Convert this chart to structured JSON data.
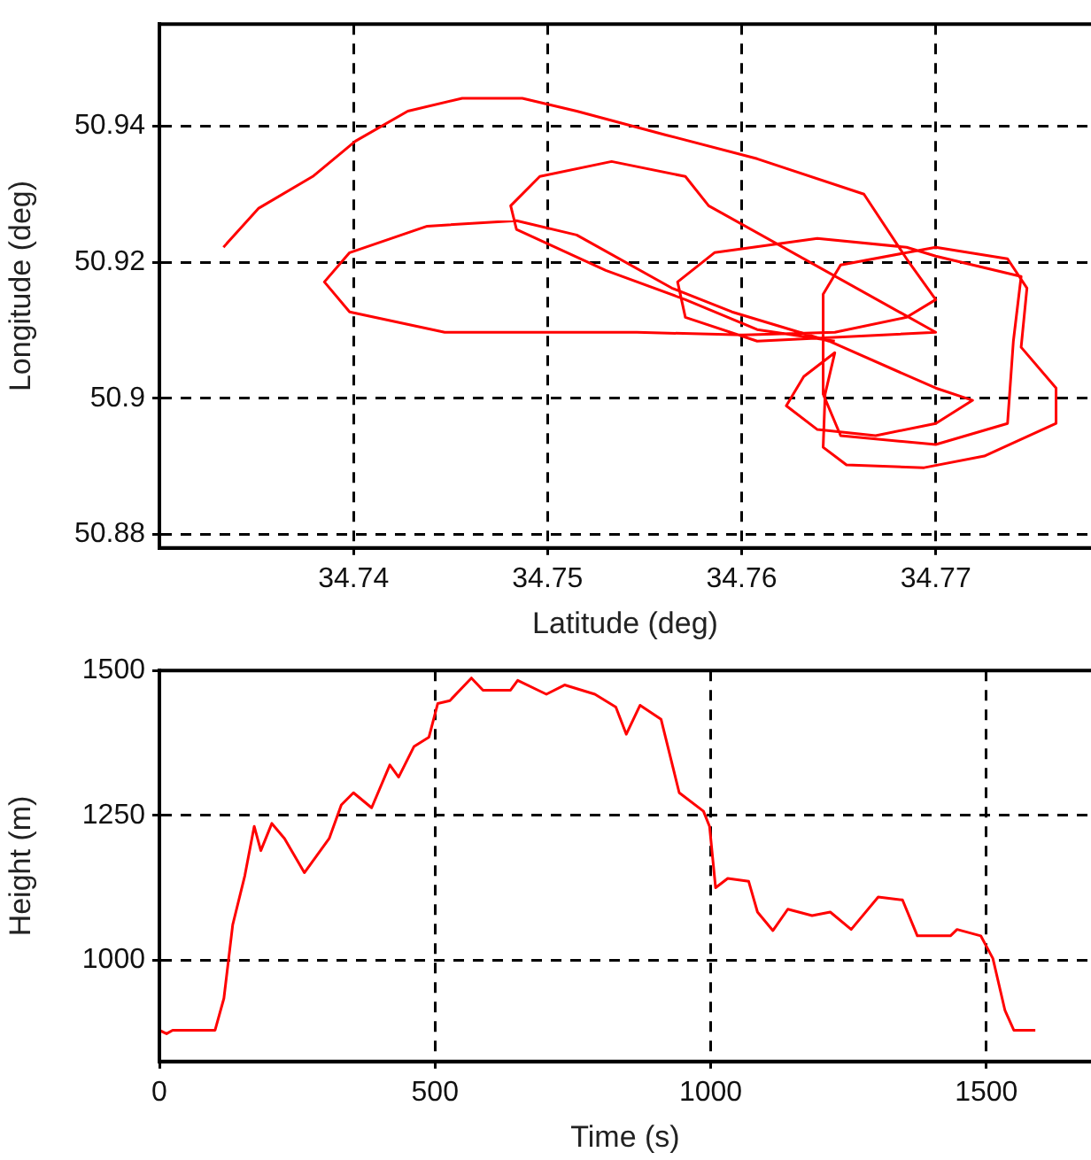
{
  "chart_data": [
    {
      "type": "line",
      "xlabel": "Latitude (deg)",
      "ylabel": "Longitude (deg)",
      "xlim": [
        34.73,
        34.778
      ],
      "ylim": [
        50.878,
        50.955
      ],
      "xticks": [
        34.74,
        34.75,
        34.76,
        34.77
      ],
      "yticks": [
        50.88,
        50.9,
        50.92,
        50.94
      ],
      "grid": true,
      "legend": false,
      "marker": "none",
      "line_style": "solid",
      "series": [
        {
          "color": "#ff0000",
          "x": [
            34.7333,
            34.7351,
            34.7379,
            34.7401,
            34.7428,
            34.7456,
            34.7487,
            34.7515,
            34.7561,
            34.7608,
            34.7663,
            34.7685,
            34.77,
            34.7685,
            34.7648,
            34.7601,
            34.7546,
            34.7447,
            34.7398,
            34.7385,
            34.7398,
            34.7438,
            34.7484,
            34.7515,
            34.7564,
            34.7595,
            34.7645,
            34.77,
            34.7719,
            34.77,
            34.7669,
            34.7639,
            34.7623,
            34.7632,
            34.7648,
            34.7643,
            34.7642,
            34.7654,
            34.7694,
            34.7725,
            34.7762,
            34.7762,
            34.7744,
            34.7747,
            34.7737,
            34.77,
            34.7651,
            34.7642,
            34.7642,
            34.7651,
            34.77,
            34.7737,
            34.774,
            34.7744,
            34.77,
            34.7685,
            34.7639,
            34.7586,
            34.7567,
            34.7571,
            34.7608,
            34.77,
            34.7583,
            34.7571,
            34.7533,
            34.7496,
            34.7481,
            34.7484,
            34.753,
            34.7571,
            34.7608,
            34.7648
          ],
          "values": [
            50.9222,
            50.9279,
            50.9326,
            50.9378,
            50.9422,
            50.9441,
            50.9441,
            50.9422,
            50.9387,
            50.9352,
            50.93,
            50.9205,
            50.9145,
            50.9119,
            50.9097,
            50.9093,
            50.9097,
            50.9097,
            50.9127,
            50.9171,
            50.9214,
            50.9253,
            50.9261,
            50.924,
            50.9162,
            50.9127,
            50.9084,
            50.9015,
            50.8997,
            50.8963,
            50.8945,
            50.8954,
            50.8989,
            50.9032,
            50.9067,
            50.9006,
            50.8928,
            50.8902,
            50.8898,
            50.8915,
            50.8963,
            50.9015,
            50.9075,
            50.9162,
            50.9205,
            50.9222,
            50.9196,
            50.9153,
            50.9006,
            50.8945,
            50.8932,
            50.8963,
            50.9084,
            50.9179,
            50.9209,
            50.9222,
            50.9235,
            50.9214,
            50.9171,
            50.9119,
            50.9084,
            50.9097,
            50.9283,
            50.9326,
            50.9348,
            50.9326,
            50.9283,
            50.9248,
            50.9188,
            50.9145,
            50.9101,
            50.9084
          ]
        }
      ]
    },
    {
      "type": "line",
      "xlabel": "Time (s)",
      "ylabel": "Height (m)",
      "xlim": [
        0,
        1690
      ],
      "ylim": [
        825,
        1500
      ],
      "xticks": [
        0,
        500,
        1000,
        1500
      ],
      "yticks": [
        1000,
        1250,
        1500
      ],
      "grid": true,
      "legend": false,
      "marker": "none",
      "line_style": "solid",
      "series": [
        {
          "color": "#ff0000",
          "x": [
            0,
            13,
            24,
            101,
            117,
            133,
            155,
            172,
            184,
            204,
            227,
            263,
            308,
            330,
            352,
            385,
            418,
            434,
            462,
            489,
            505,
            527,
            566,
            587,
            637,
            650,
            702,
            735,
            790,
            828,
            847,
            872,
            910,
            943,
            987,
            998,
            1009,
            1031,
            1069,
            1085,
            1113,
            1140,
            1184,
            1217,
            1255,
            1304,
            1348,
            1375,
            1435,
            1447,
            1490,
            1512,
            1534,
            1550,
            1589
          ],
          "values": [
            879,
            873,
            879,
            879,
            934,
            1061,
            1146,
            1231,
            1189,
            1236,
            1210,
            1151,
            1210,
            1268,
            1289,
            1263,
            1337,
            1316,
            1369,
            1385,
            1443,
            1448,
            1487,
            1466,
            1466,
            1483,
            1459,
            1475,
            1459,
            1437,
            1390,
            1440,
            1416,
            1289,
            1257,
            1231,
            1125,
            1141,
            1136,
            1083,
            1051,
            1088,
            1077,
            1083,
            1053,
            1109,
            1104,
            1042,
            1042,
            1053,
            1042,
            1003,
            913,
            879,
            879
          ]
        }
      ]
    }
  ]
}
